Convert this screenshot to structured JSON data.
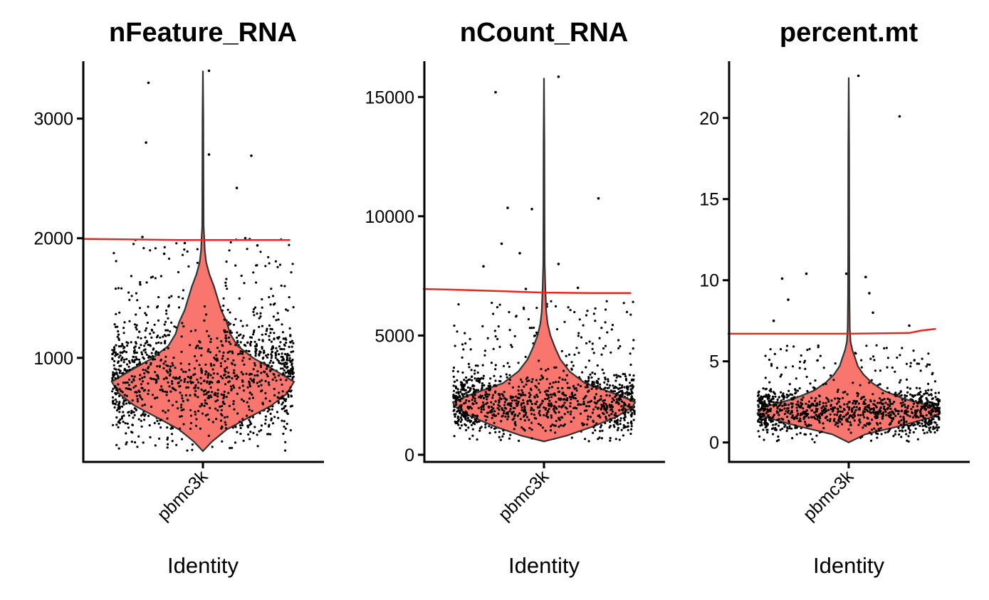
{
  "chart_data": [
    {
      "type": "violin",
      "title": "nFeature_RNA",
      "xlabel": "Identity",
      "ylabel": "",
      "categories": [
        "pbmc3k"
      ],
      "ylim": [
        130,
        3480
      ],
      "yticks": [
        1000,
        2000,
        3000
      ],
      "ytick_labels": [
        "1000",
        "2000",
        "3000"
      ],
      "violin_profile": [
        [
          220,
          0.0
        ],
        [
          300,
          0.1
        ],
        [
          400,
          0.26
        ],
        [
          500,
          0.5
        ],
        [
          600,
          0.75
        ],
        [
          700,
          0.92
        ],
        [
          800,
          1.0
        ],
        [
          900,
          0.78
        ],
        [
          1000,
          0.55
        ],
        [
          1100,
          0.38
        ],
        [
          1200,
          0.3
        ],
        [
          1300,
          0.26
        ],
        [
          1400,
          0.2
        ],
        [
          1500,
          0.16
        ],
        [
          1600,
          0.12
        ],
        [
          1700,
          0.07
        ],
        [
          1800,
          0.035
        ],
        [
          1900,
          0.02
        ],
        [
          2000,
          0.015
        ],
        [
          2100,
          0.008
        ],
        [
          2500,
          0.006
        ],
        [
          3000,
          0.005
        ],
        [
          3400,
          0.0
        ]
      ],
      "jitter": {
        "count": 1400,
        "seed": 17,
        "center": 820,
        "spread": 280,
        "tail_count": 160,
        "tail_max": 2000,
        "min": 220
      },
      "outliers": [
        [
          -0.45,
          3300
        ],
        [
          -0.47,
          2800
        ],
        [
          0.05,
          2700
        ],
        [
          0.4,
          2690
        ],
        [
          0.28,
          2420
        ],
        [
          0.05,
          3400
        ],
        [
          -0.5,
          2010
        ],
        [
          -0.32,
          1870
        ],
        [
          -0.15,
          1960
        ],
        [
          0.35,
          2000
        ],
        [
          0.45,
          1940
        ]
      ],
      "threshold": [
        [
          -1.0,
          1995
        ],
        [
          -0.6,
          1990
        ],
        [
          -0.2,
          1985
        ],
        [
          0.2,
          1985
        ],
        [
          0.6,
          1985
        ],
        [
          0.72,
          1985
        ]
      ]
    },
    {
      "type": "violin",
      "title": "nCount_RNA",
      "xlabel": "Identity",
      "ylabel": "",
      "categories": [
        "pbmc3k"
      ],
      "ylim": [
        -300,
        16500
      ],
      "yticks": [
        0,
        5000,
        10000,
        15000
      ],
      "ytick_labels": [
        "0",
        "5000",
        "10000",
        "15000"
      ],
      "violin_profile": [
        [
          560,
          0.0
        ],
        [
          800,
          0.25
        ],
        [
          1200,
          0.55
        ],
        [
          1600,
          0.8
        ],
        [
          2000,
          0.97
        ],
        [
          2200,
          1.0
        ],
        [
          2500,
          0.82
        ],
        [
          3000,
          0.45
        ],
        [
          3500,
          0.28
        ],
        [
          4000,
          0.18
        ],
        [
          4500,
          0.12
        ],
        [
          5000,
          0.07
        ],
        [
          5500,
          0.04
        ],
        [
          6000,
          0.025
        ],
        [
          7000,
          0.015
        ],
        [
          8000,
          0.008
        ],
        [
          10000,
          0.006
        ],
        [
          13000,
          0.005
        ],
        [
          15800,
          0.0
        ]
      ],
      "jitter": {
        "count": 1400,
        "seed": 29,
        "center": 2150,
        "spread": 750,
        "tail_count": 160,
        "tail_max": 6500,
        "min": 560
      },
      "outliers": [
        [
          -0.4,
          15200
        ],
        [
          0.12,
          15850
        ],
        [
          -0.3,
          10350
        ],
        [
          -0.1,
          10300
        ],
        [
          0.45,
          10750
        ],
        [
          -0.35,
          8850
        ],
        [
          -0.2,
          8450
        ],
        [
          0.12,
          8000
        ],
        [
          -0.5,
          7900
        ],
        [
          0.28,
          7000
        ],
        [
          -0.15,
          6950
        ]
      ],
      "threshold": [
        [
          -1.0,
          6950
        ],
        [
          -0.6,
          6900
        ],
        [
          -0.3,
          6850
        ],
        [
          0.0,
          6800
        ],
        [
          0.4,
          6780
        ],
        [
          0.72,
          6780
        ]
      ]
    },
    {
      "type": "violin",
      "title": "percent.mt",
      "xlabel": "Identity",
      "ylabel": "",
      "categories": [
        "pbmc3k"
      ],
      "ylim": [
        -1.2,
        23.5
      ],
      "yticks": [
        0,
        5,
        10,
        15,
        20
      ],
      "ytick_labels": [
        "0",
        "5",
        "10",
        "15",
        "20"
      ],
      "violin_profile": [
        [
          0.0,
          0.0
        ],
        [
          0.5,
          0.18
        ],
        [
          1.0,
          0.55
        ],
        [
          1.5,
          0.88
        ],
        [
          1.8,
          1.0
        ],
        [
          2.2,
          0.92
        ],
        [
          2.7,
          0.6
        ],
        [
          3.2,
          0.38
        ],
        [
          3.7,
          0.25
        ],
        [
          4.2,
          0.16
        ],
        [
          4.7,
          0.1
        ],
        [
          5.2,
          0.07
        ],
        [
          5.7,
          0.04
        ],
        [
          6.2,
          0.02
        ],
        [
          7.0,
          0.012
        ],
        [
          9.0,
          0.008
        ],
        [
          12.0,
          0.006
        ],
        [
          18.0,
          0.005
        ],
        [
          22.5,
          0.0
        ]
      ],
      "jitter": {
        "count": 1400,
        "seed": 43,
        "center": 1.9,
        "spread": 0.75,
        "tail_count": 140,
        "tail_max": 6.0,
        "min": 0.0
      },
      "outliers": [
        [
          0.08,
          22.6
        ],
        [
          0.42,
          20.1
        ],
        [
          -0.55,
          10.1
        ],
        [
          -0.35,
          10.4
        ],
        [
          -0.02,
          10.4
        ],
        [
          0.14,
          10.2
        ],
        [
          0.17,
          9.2
        ],
        [
          0.2,
          8.0
        ],
        [
          -0.5,
          8.8
        ],
        [
          -0.62,
          7.5
        ],
        [
          0.5,
          7.2
        ]
      ],
      "threshold": [
        [
          -1.0,
          6.7
        ],
        [
          -0.5,
          6.7
        ],
        [
          0.0,
          6.7
        ],
        [
          0.5,
          6.75
        ],
        [
          0.6,
          6.9
        ],
        [
          0.72,
          7.0
        ]
      ]
    }
  ]
}
